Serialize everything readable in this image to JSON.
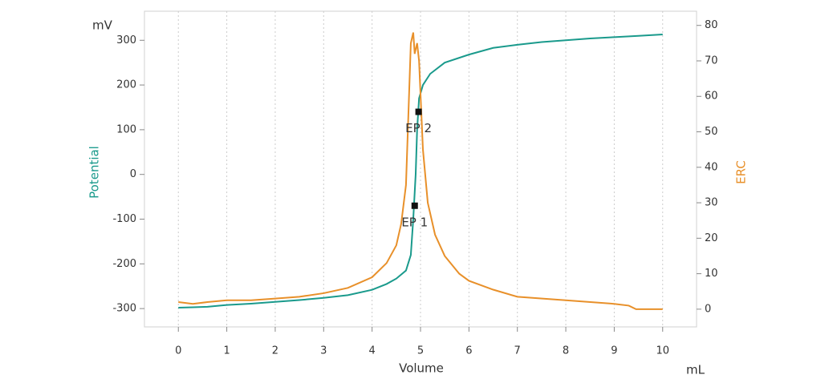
{
  "chart_data": {
    "type": "line",
    "x_label": "Volume",
    "x_unit": "mL",
    "y_unit": "mV",
    "y_label": "Potential",
    "y2_label": "ERC",
    "xlim": [
      -0.7,
      10.7
    ],
    "xticks": [
      0,
      1,
      2,
      3,
      4,
      5,
      6,
      7,
      8,
      9,
      10
    ],
    "ylim": [
      -341,
      365
    ],
    "yticks": [
      -300,
      -200,
      -100,
      0,
      100,
      200,
      300
    ],
    "y2lim": [
      -5,
      84
    ],
    "y2ticks": [
      0,
      10,
      20,
      30,
      40,
      50,
      60,
      70,
      80
    ],
    "grid": "x",
    "series": [
      {
        "name": "Potential",
        "color": "#1a9a8c",
        "x": [
          0,
          0.3,
          0.6,
          1,
          1.5,
          2,
          2.5,
          3,
          3.5,
          4,
          4.3,
          4.5,
          4.7,
          4.8,
          4.85,
          4.9,
          4.93,
          4.97,
          5.05,
          5.2,
          5.5,
          6,
          6.5,
          7,
          7.5,
          8,
          8.5,
          9,
          9.5,
          10
        ],
        "values": [
          -298,
          -297,
          -296,
          -292,
          -289,
          -285,
          -281,
          -276,
          -270,
          -258,
          -245,
          -233,
          -215,
          -180,
          -100,
          0,
          100,
          170,
          200,
          225,
          250,
          268,
          283,
          290,
          296,
          300,
          304,
          307,
          310,
          313
        ]
      },
      {
        "name": "ERC",
        "color": "#e8902a",
        "axis": "y2",
        "x": [
          0,
          0.3,
          0.6,
          1,
          1.5,
          2,
          2.5,
          3,
          3.5,
          4,
          4.3,
          4.5,
          4.6,
          4.7,
          4.75,
          4.8,
          4.85,
          4.88,
          4.93,
          4.97,
          5.05,
          5.15,
          5.3,
          5.5,
          5.8,
          6,
          6.5,
          7,
          8,
          9,
          9.3,
          9.45,
          10
        ],
        "values": [
          2,
          1.5,
          2,
          2.5,
          2.5,
          3,
          3.5,
          4.5,
          6,
          9,
          13,
          18,
          24,
          35,
          55,
          75,
          78,
          72,
          75,
          70,
          45,
          30,
          21,
          15,
          10,
          8,
          5.5,
          3.5,
          2.5,
          1.5,
          1,
          0,
          0
        ]
      }
    ],
    "annotations": [
      {
        "text": "EP 1",
        "x": 4.88,
        "y": -70
      },
      {
        "text": "EP 2",
        "x": 4.96,
        "y": 140
      }
    ]
  }
}
